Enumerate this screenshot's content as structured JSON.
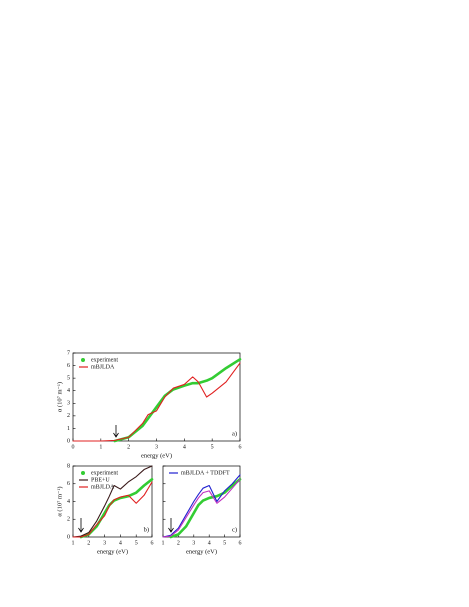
{
  "chart_data": [
    {
      "type": "line",
      "xlabel": "energy (eV)",
      "ylabel": "α (10⁷ m⁻¹)",
      "annotation": "a)",
      "x": [
        0,
        0.5,
        1,
        1.5,
        2,
        2.5,
        2.7,
        3,
        3.3,
        3.6,
        4,
        4.3,
        4.5,
        4.8,
        5,
        5.5,
        6
      ],
      "series": [
        {
          "name": "experiment",
          "color": "#33cc33",
          "marker": "dot",
          "values": [
            null,
            null,
            null,
            0,
            0.3,
            1.2,
            1.8,
            2.7,
            3.6,
            4.1,
            4.4,
            4.6,
            4.6,
            4.8,
            5.0,
            5.8,
            6.5
          ]
        },
        {
          "name": "mBJLDA",
          "color": "#e02020",
          "values": [
            0,
            0,
            0,
            0.05,
            0.3,
            1.4,
            2.1,
            2.4,
            3.5,
            4.2,
            4.5,
            5.1,
            4.7,
            3.5,
            3.8,
            4.7,
            6.2
          ]
        }
      ],
      "xlim": [
        0,
        6
      ],
      "xticks": [
        0,
        1,
        2,
        3,
        4,
        5,
        6
      ],
      "ylim": [
        0,
        7
      ],
      "yticks": [
        0,
        1,
        2,
        3,
        4,
        5,
        6,
        7
      ],
      "legend": "upper left"
    },
    {
      "type": "line",
      "xlabel": "energy (eV)",
      "ylabel": "α (10⁷ m⁻¹)",
      "annotation": "b)",
      "x": [
        1,
        1.5,
        2,
        2.5,
        3,
        3.3,
        3.6,
        4,
        4.5,
        5,
        5.5,
        6
      ],
      "series": [
        {
          "name": "experiment",
          "color": "#33cc33",
          "marker": "dot",
          "values": [
            null,
            0,
            0.3,
            1.2,
            2.7,
            3.6,
            4.1,
            4.4,
            4.6,
            5.0,
            5.8,
            6.5
          ]
        },
        {
          "name": "PBE+U",
          "color": "#3a1a1a",
          "values": [
            0,
            0.1,
            0.5,
            1.8,
            3.5,
            4.6,
            5.8,
            5.4,
            6.2,
            6.8,
            7.6,
            8
          ]
        },
        {
          "name": "mBJLDA",
          "color": "#e02020",
          "values": [
            0,
            0,
            0.3,
            1.4,
            2.4,
            3.5,
            4.2,
            4.5,
            4.7,
            3.8,
            4.7,
            6.2
          ]
        }
      ],
      "xlim": [
        1,
        6
      ],
      "xticks": [
        1,
        2,
        3,
        4,
        5,
        6
      ],
      "ylim": [
        0,
        8
      ],
      "yticks": [
        0,
        2,
        4,
        6,
        8
      ],
      "legend": "upper left"
    },
    {
      "type": "line",
      "xlabel": "energy (eV)",
      "annotation": "c)",
      "x": [
        1,
        1.5,
        2,
        2.5,
        3,
        3.3,
        3.6,
        4,
        4.5,
        5,
        5.5,
        6
      ],
      "series": [
        {
          "color": "#33cc33",
          "marker": "dot",
          "values": [
            null,
            0,
            0.3,
            1.2,
            2.7,
            3.6,
            4.1,
            4.4,
            4.6,
            5.0,
            5.8,
            6.5
          ]
        },
        {
          "name": "mBJLDA + TDDFT",
          "color": "#2020d0",
          "values": [
            0,
            0.2,
            1,
            2.5,
            4,
            4.8,
            5.5,
            5.8,
            4,
            5.2,
            6,
            7
          ]
        },
        {
          "color": "#c030c0",
          "values": [
            0,
            0.1,
            0.8,
            2.2,
            3.6,
            4.4,
            5.0,
            5.2,
            3.8,
            4.5,
            5.5,
            6.5
          ]
        }
      ],
      "xlim": [
        1,
        6
      ],
      "xticks": [
        1,
        2,
        3,
        4,
        5,
        6
      ],
      "ylim": [
        0,
        8
      ],
      "yticks": [
        0,
        2,
        4,
        6,
        8
      ],
      "ytick_labels": false,
      "legend": "upper left"
    }
  ]
}
